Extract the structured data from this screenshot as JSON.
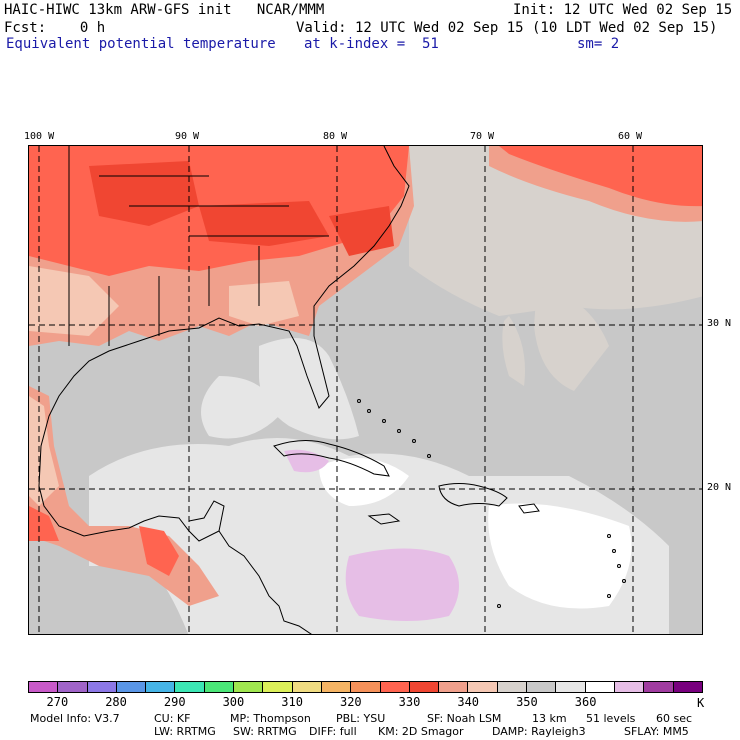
{
  "header": {
    "title": "HAIC-HIWC 13km ARW-GFS init   NCAR/MMM",
    "fcst": "Fcst:    0 h",
    "init": "Init: 12 UTC Wed 02 Sep 15",
    "valid": "Valid: 12 UTC Wed 02 Sep 15 (10 LDT Wed 02 Sep 15)",
    "field": "Equivalent potential temperature",
    "level": "at k-index =  51",
    "smoothing": "sm= 2"
  },
  "map": {
    "lon_labels": [
      "100 W",
      "90 W",
      "80 W",
      "70 W",
      "60 W"
    ],
    "lat_labels": [
      "30 N",
      "20 N"
    ]
  },
  "colorbar": {
    "colors": [
      "#c85ac8",
      "#a064c8",
      "#8c78e6",
      "#5a96e6",
      "#46b4e6",
      "#3ce6b4",
      "#4be678",
      "#a0e650",
      "#dcf05a",
      "#f0dc82",
      "#f5b464",
      "#f5915a",
      "#ff6450",
      "#f04632",
      "#f0a08c",
      "#f5c8b4",
      "#d7d2cd",
      "#c8c8c8",
      "#e6e6e6",
      "#ffffff",
      "#e6bee6",
      "#a03ca0",
      "#78007e"
    ],
    "tick_labels": [
      "270",
      "280",
      "290",
      "300",
      "310",
      "320",
      "330",
      "340",
      "350",
      "360"
    ],
    "unit": "K"
  },
  "model_info": {
    "line1": [
      "Model Info: V3.7",
      "CU: KF",
      "MP: Thompson",
      "PBL: YSU",
      "SF: Noah LSM",
      "13 km",
      "51 levels",
      "60 sec"
    ],
    "line2": [
      "LW: RRTMG",
      "SW: RRTMG",
      "DIFF: full",
      "KM: 2D Smagor",
      "DAMP: Rayleigh3",
      "SFLAY: MM5"
    ]
  }
}
